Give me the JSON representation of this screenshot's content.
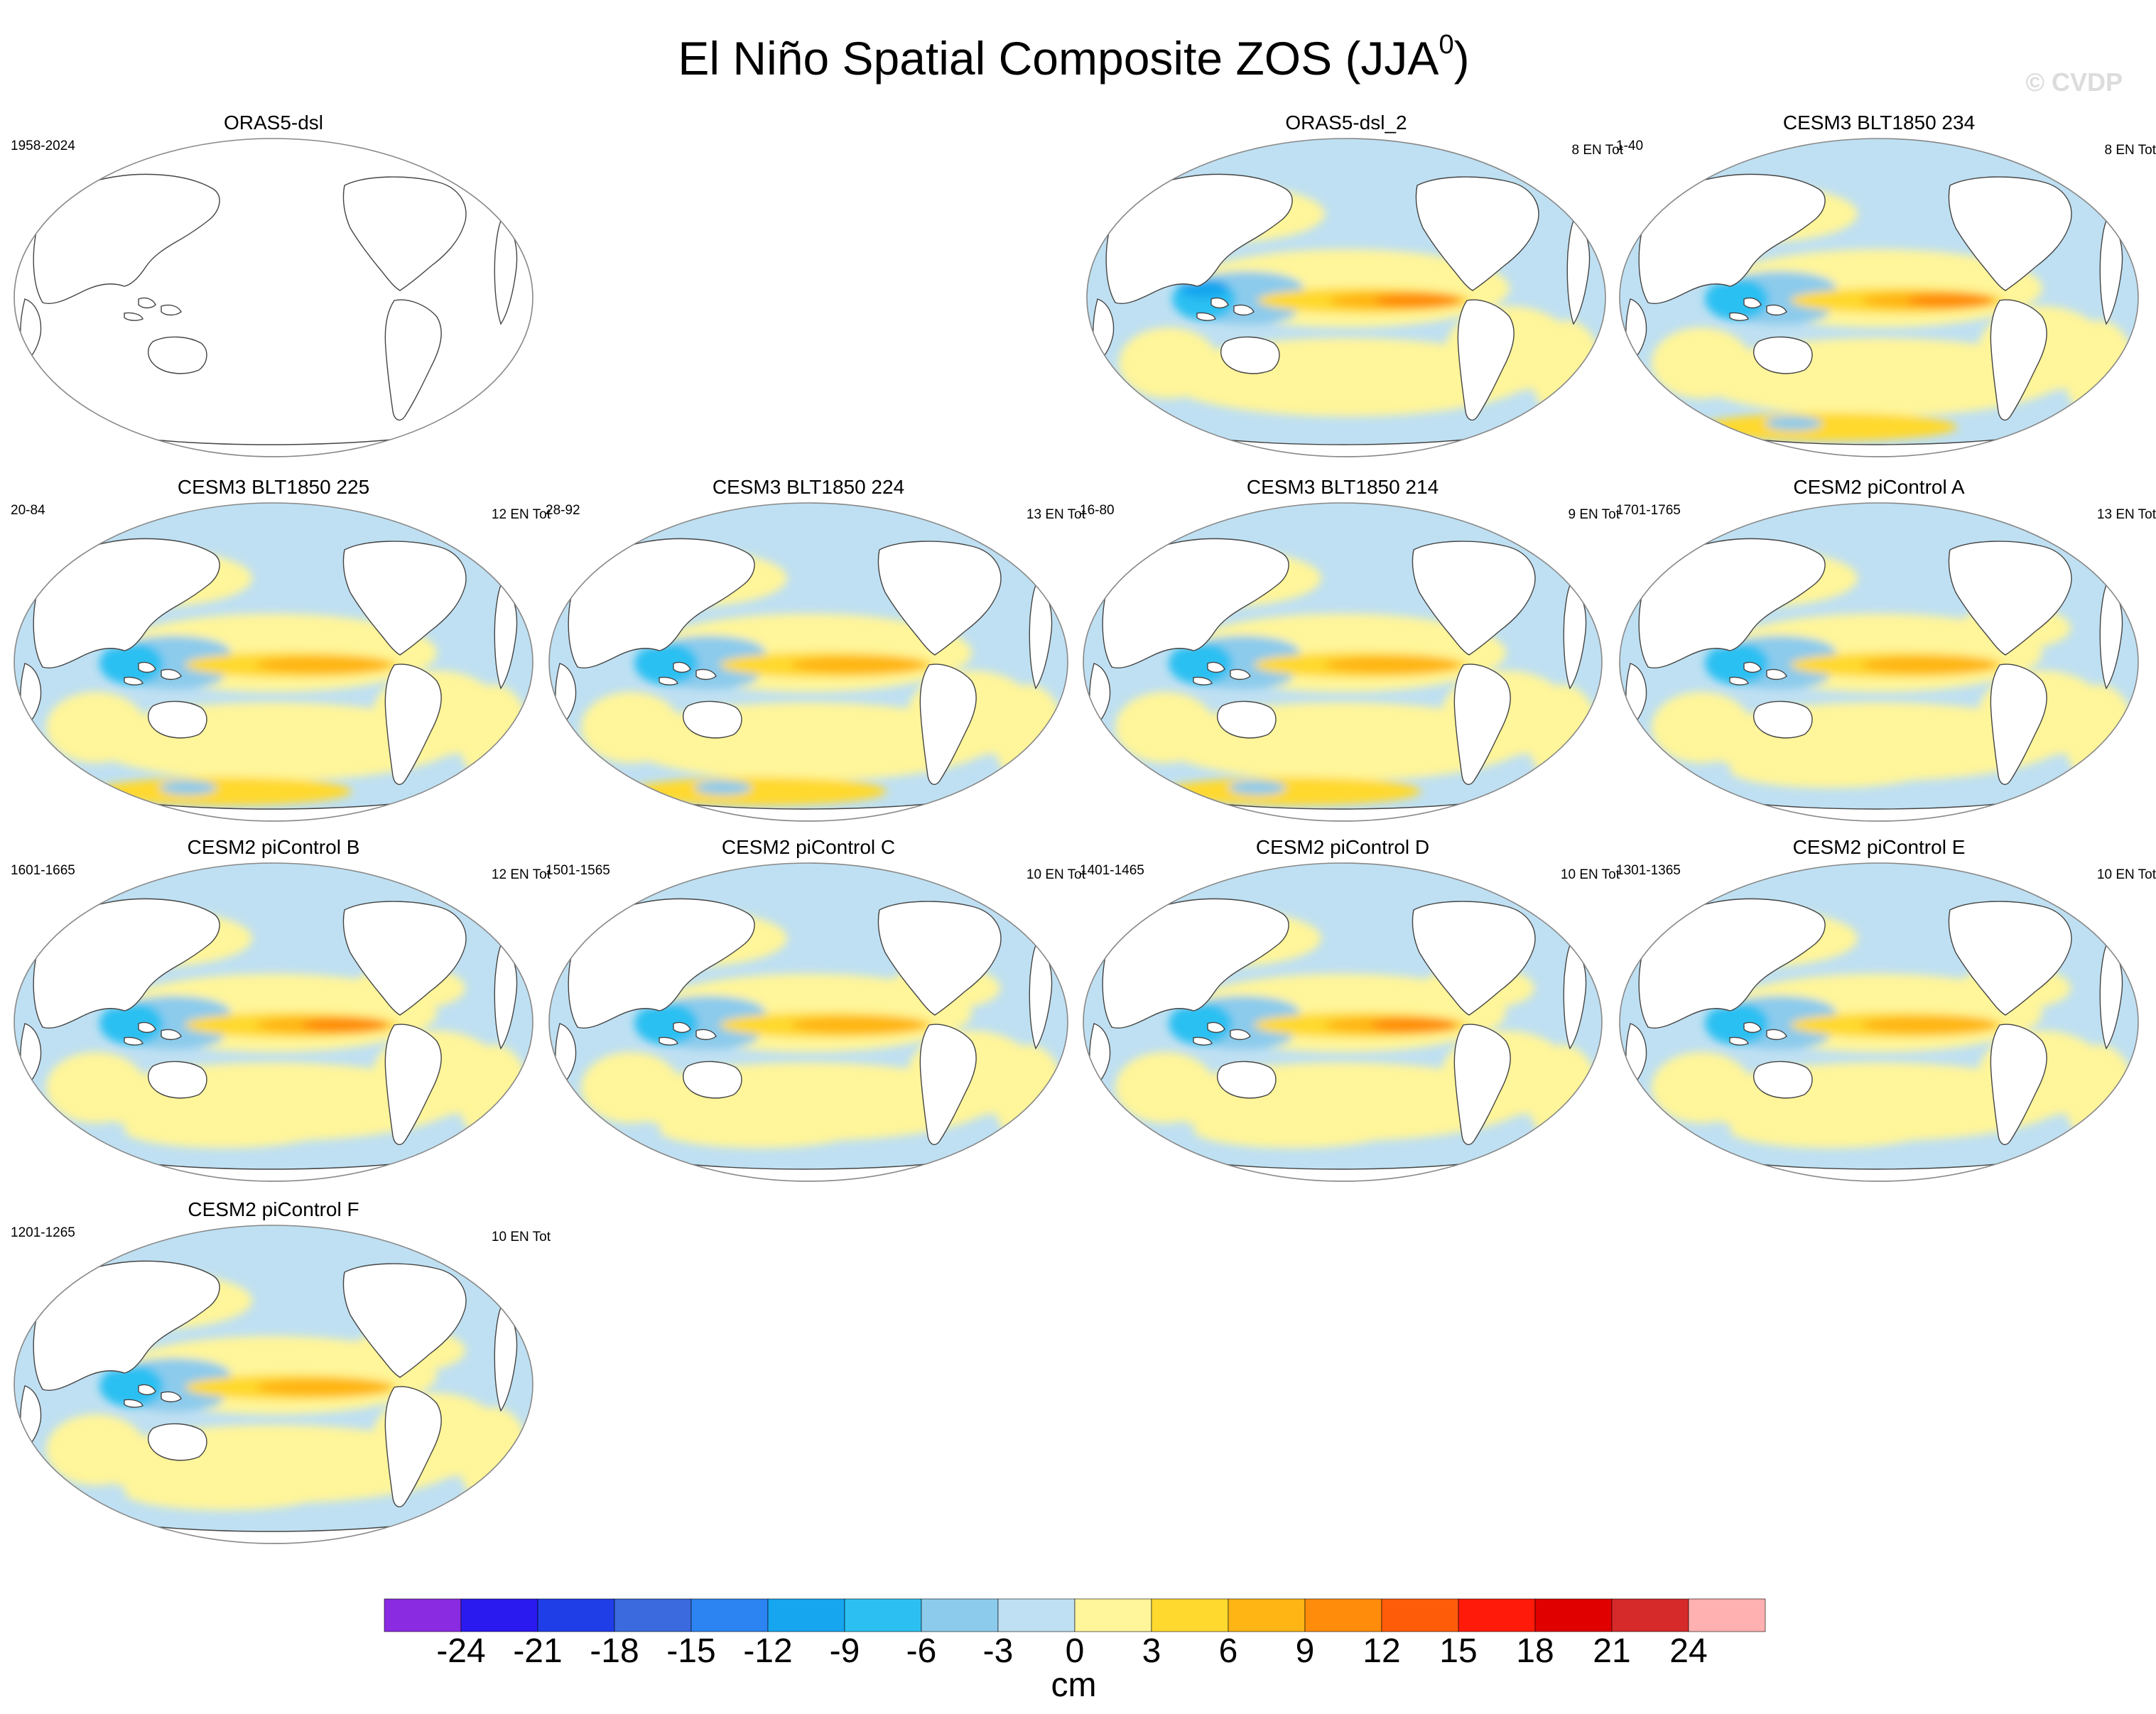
{
  "title_main": "El Niño Spatial Composite ZOS (JJA",
  "title_sup": "0",
  "title_close": ")",
  "watermark": "© CVDP",
  "panels": [
    {
      "title": "ORAS5-dsl",
      "years": "1958-2024",
      "count": "",
      "blank": true
    },
    {
      "title": "ORAS5-dsl_2",
      "years": "",
      "count": "8 EN Tot",
      "blank": false
    },
    {
      "title": "CESM3 BLT1850 234",
      "years": "1-40",
      "count": "8 EN Tot",
      "blank": false
    },
    {
      "title": "CESM3 BLT1850 225",
      "years": "20-84",
      "count": "12 EN Tot",
      "blank": false
    },
    {
      "title": "CESM3 BLT1850 224",
      "years": "28-92",
      "count": "13 EN Tot",
      "blank": false
    },
    {
      "title": "CESM3 BLT1850 214",
      "years": "16-80",
      "count": "9 EN Tot",
      "blank": false
    },
    {
      "title": "CESM2 piControl A",
      "years": "1701-1765",
      "count": "13 EN Tot",
      "blank": false
    },
    {
      "title": "CESM2 piControl B",
      "years": "1601-1665",
      "count": "12 EN Tot",
      "blank": false
    },
    {
      "title": "CESM2 piControl C",
      "years": "1501-1565",
      "count": "10 EN Tot",
      "blank": false
    },
    {
      "title": "CESM2 piControl D",
      "years": "1401-1465",
      "count": "10 EN Tot",
      "blank": false
    },
    {
      "title": "CESM2 piControl E",
      "years": "1301-1365",
      "count": "10 EN Tot",
      "blank": false
    },
    {
      "title": "CESM2 piControl F",
      "years": "1201-1265",
      "count": "10 EN Tot",
      "blank": false
    }
  ],
  "chart_data": {
    "type": "heatmap",
    "title": "El Niño Spatial Composite ZOS (JJA0)",
    "colorbar": {
      "unit": "cm",
      "ticks": [
        "-24",
        "-21",
        "-18",
        "-15",
        "-12",
        "-9",
        "-6",
        "-3",
        "0",
        "3",
        "6",
        "9",
        "12",
        "15",
        "18",
        "21",
        "24"
      ],
      "colors": [
        "#8a2be2",
        "#2a1af0",
        "#1f3ee8",
        "#3a6ade",
        "#2c84f2",
        "#16a6ef",
        "#2cc0f2",
        "#8ccbec",
        "#bfe0f2",
        "#fff59a",
        "#ffd92e",
        "#ffb514",
        "#ff8c0a",
        "#ff5c0a",
        "#ff1a0a",
        "#e00000",
        "#d62a2a",
        "#ffb0b0"
      ]
    }
  }
}
